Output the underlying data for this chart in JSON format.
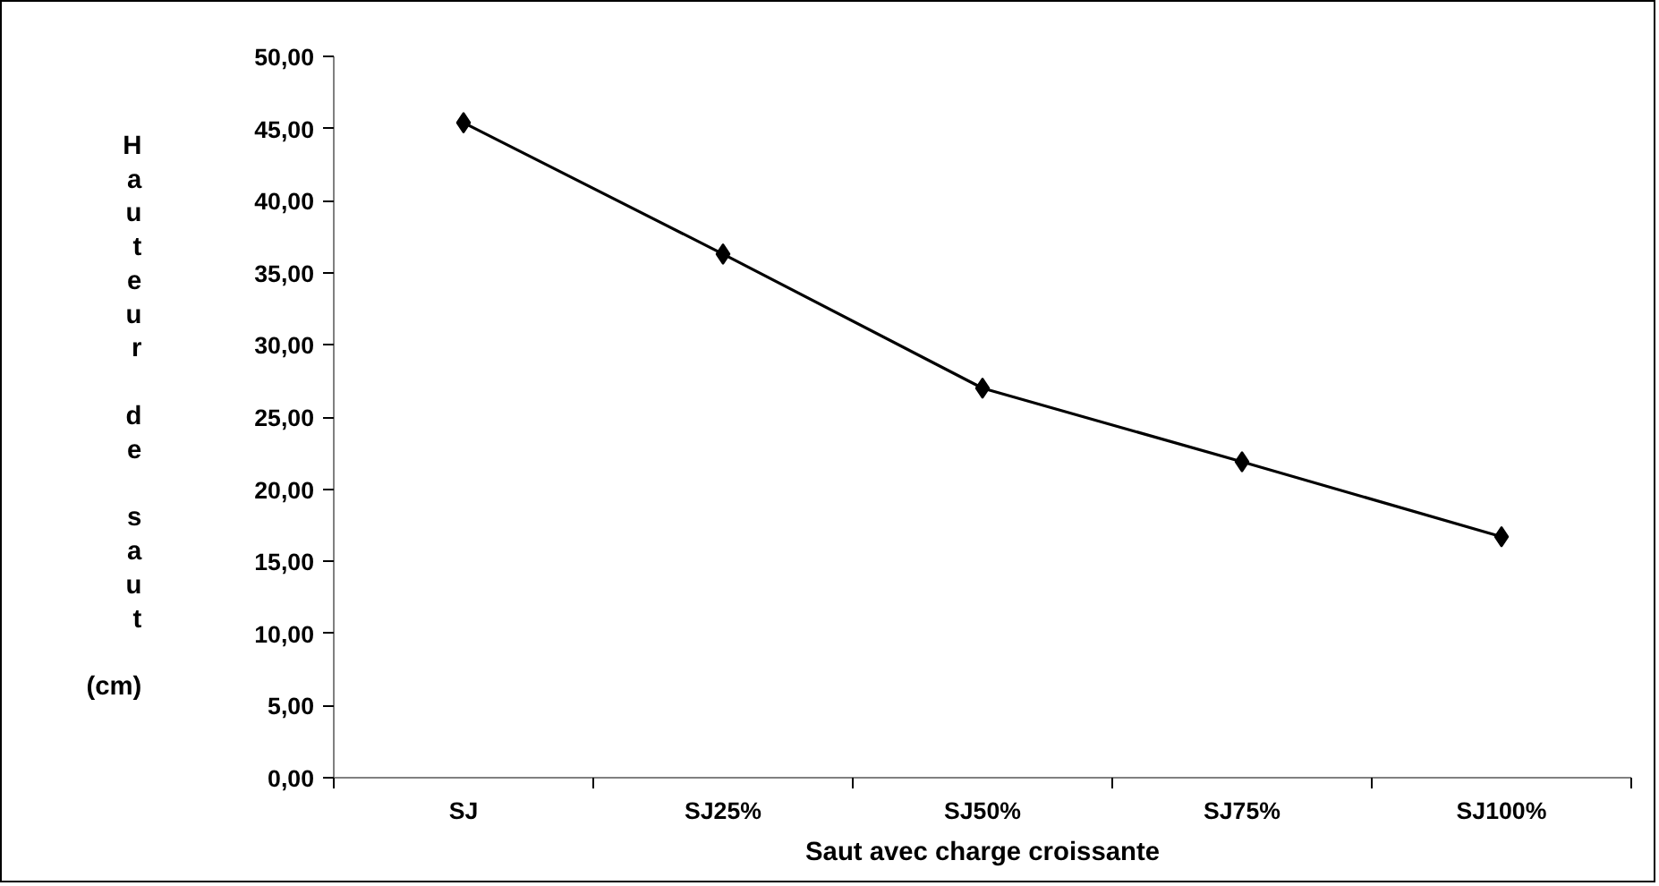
{
  "chart_data": {
    "type": "line",
    "xlabel": "Saut avec charge croissante",
    "ylabel": "Hauteur de saut (cm)",
    "categories": [
      "SJ",
      "SJ25%",
      "SJ50%",
      "SJ75%",
      "SJ100%"
    ],
    "series": [
      {
        "color": "#000000",
        "values": [
          45.4,
          36.3,
          27.0,
          21.9,
          16.7
        ]
      }
    ],
    "ylim": [
      0,
      50
    ],
    "yticks": [
      {
        "value": 0,
        "label": "0,00"
      },
      {
        "value": 5,
        "label": "5,00"
      },
      {
        "value": 10,
        "label": "10,00"
      },
      {
        "value": 15,
        "label": "15,00"
      },
      {
        "value": 20,
        "label": "20,00"
      },
      {
        "value": 25,
        "label": "25,00"
      },
      {
        "value": 30,
        "label": "30,00"
      },
      {
        "value": 35,
        "label": "35,00"
      },
      {
        "value": 40,
        "label": "40,00"
      },
      {
        "value": 45,
        "label": "45,00"
      },
      {
        "value": 50,
        "label": "50,00"
      }
    ],
    "grid": false,
    "marker": "diamond",
    "line_style": "solid"
  }
}
